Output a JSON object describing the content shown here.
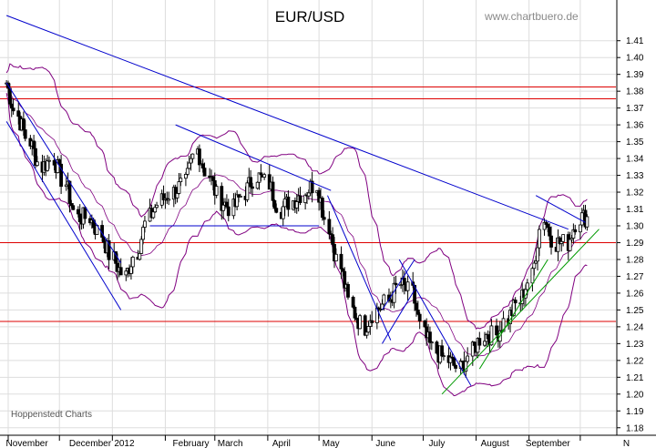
{
  "chart_data": {
    "type": "candlestick",
    "title": "EUR/USD",
    "watermark": "www.chartbuero.de",
    "source": "Hoppenstedt Charts",
    "x_tick_labels": [
      "November",
      "December",
      "2012",
      "February",
      "March",
      "April",
      "May",
      "June",
      "July",
      "August",
      "September",
      "N"
    ],
    "y_tick_labels": [
      "1.18",
      "1.19",
      "1.20",
      "1.21",
      "1.22",
      "1.23",
      "1.24",
      "1.25",
      "1.26",
      "1.27",
      "1.28",
      "1.29",
      "1.30",
      "1.31",
      "1.32",
      "1.33",
      "1.34",
      "1.35",
      "1.36",
      "1.37",
      "1.38",
      "1.39",
      "1.40",
      "1.41"
    ],
    "ylim": [
      1.175,
      1.425
    ],
    "grid": true,
    "colors": {
      "candles": "#000000",
      "bollinger": "#800080",
      "trendline": "#0000cc",
      "horizontal_levels": "#dd0000",
      "uptrend": "#009900",
      "grid": "#dddddd"
    },
    "horizontal_levels": [
      1.3825,
      1.3755,
      1.29,
      1.2432
    ],
    "series": [
      {
        "kind": "close",
        "dates": [
          "2011-10-31",
          "2011-11-07",
          "2011-11-14",
          "2011-11-21",
          "2011-11-28",
          "2011-12-05",
          "2011-12-12",
          "2011-12-19",
          "2011-12-26",
          "2012-01-02",
          "2012-01-09",
          "2012-01-16",
          "2012-01-23",
          "2012-01-30",
          "2012-02-06",
          "2012-02-13",
          "2012-02-20",
          "2012-02-27",
          "2012-03-05",
          "2012-03-12",
          "2012-03-19",
          "2012-03-26",
          "2012-04-02",
          "2012-04-09",
          "2012-04-16",
          "2012-04-23",
          "2012-04-30",
          "2012-05-07",
          "2012-05-14",
          "2012-05-21",
          "2012-05-28",
          "2012-06-04",
          "2012-06-11",
          "2012-06-18",
          "2012-06-25",
          "2012-07-02",
          "2012-07-09",
          "2012-07-16",
          "2012-07-23",
          "2012-07-30",
          "2012-08-06",
          "2012-08-13",
          "2012-08-20",
          "2012-08-27",
          "2012-09-03",
          "2012-09-10",
          "2012-09-17",
          "2012-09-24",
          "2012-10-01",
          "2012-10-08"
        ],
        "values": [
          1.385,
          1.365,
          1.35,
          1.335,
          1.34,
          1.325,
          1.305,
          1.305,
          1.295,
          1.28,
          1.27,
          1.285,
          1.305,
          1.315,
          1.32,
          1.325,
          1.345,
          1.33,
          1.315,
          1.31,
          1.32,
          1.33,
          1.325,
          1.31,
          1.315,
          1.32,
          1.325,
          1.3,
          1.275,
          1.25,
          1.24,
          1.25,
          1.255,
          1.265,
          1.26,
          1.235,
          1.225,
          1.22,
          1.215,
          1.225,
          1.235,
          1.235,
          1.245,
          1.255,
          1.27,
          1.305,
          1.29,
          1.29,
          1.305,
          1.305
        ]
      }
    ],
    "trendlines": [
      {
        "name": "main-downtrend",
        "from": [
          "2011-10-31",
          1.425
        ],
        "to": [
          "2012-09-24",
          1.298
        ]
      },
      {
        "name": "downtrend-upper",
        "from": [
          "2011-10-31",
          1.385
        ],
        "to": [
          "2012-01-06",
          1.278
        ]
      },
      {
        "name": "downtrend-lower",
        "from": [
          "2011-10-31",
          1.362
        ],
        "to": [
          "2012-01-06",
          1.25
        ]
      },
      {
        "name": "spring-resistance",
        "from": [
          "2012-02-07",
          1.36
        ],
        "to": [
          "2012-05-08",
          1.321
        ]
      },
      {
        "name": "spring-support",
        "from": [
          "2012-01-23",
          1.3
        ],
        "to": [
          "2012-05-01",
          1.3
        ]
      },
      {
        "name": "may-downtrend",
        "from": [
          "2012-05-06",
          1.318
        ],
        "to": [
          "2012-06-12",
          1.232
        ]
      },
      {
        "name": "june-channel-upper",
        "from": [
          "2012-06-07",
          1.25
        ],
        "to": [
          "2012-06-26",
          1.28
        ]
      },
      {
        "name": "june-channel-lower",
        "from": [
          "2012-06-07",
          1.23
        ],
        "to": [
          "2012-06-26",
          1.262
        ]
      },
      {
        "name": "july-downtrend",
        "from": [
          "2012-06-17",
          1.28
        ],
        "to": [
          "2012-07-29",
          1.205
        ]
      },
      {
        "name": "september-channel",
        "from": [
          "2012-09-05",
          1.318
        ],
        "to": [
          "2012-10-04",
          1.302
        ]
      }
    ],
    "uptrend_lines": [
      {
        "name": "uptrend-main",
        "from": [
          "2012-07-12",
          1.2
        ],
        "to": [
          "2012-10-12",
          1.298
        ]
      },
      {
        "name": "uptrend-parallel",
        "from": [
          "2012-08-03",
          1.215
        ],
        "to": [
          "2012-09-12",
          1.28
        ]
      }
    ]
  }
}
